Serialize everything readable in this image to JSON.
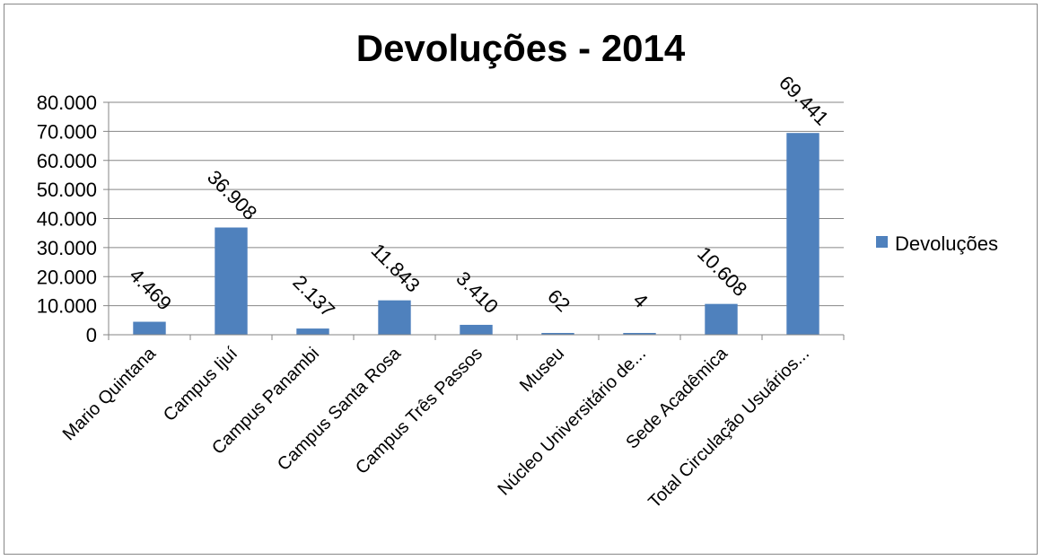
{
  "chart_data": {
    "type": "bar",
    "title": "Devoluções - 2014",
    "categories": [
      "Mario Quintana",
      "Campus Ijuí",
      "Campus Panambi",
      "Campus Santa Rosa",
      "Campus Três Passos",
      "Museu",
      "Núcleo Universitário de...",
      "Sede Acadêmica",
      "Total Circulação Usuários..."
    ],
    "series": [
      {
        "name": "Devoluções",
        "values": [
          4469,
          36908,
          2137,
          11843,
          3410,
          62,
          4,
          10608,
          69441
        ],
        "labels": [
          "4.469",
          "36.908",
          "2.137",
          "11.843",
          "3.410",
          "62",
          "4",
          "10.608",
          "69.441"
        ],
        "color": "#4F81BD"
      }
    ],
    "yticks": [
      "0",
      "10.000",
      "20.000",
      "30.000",
      "40.000",
      "50.000",
      "60.000",
      "70.000",
      "80.000"
    ],
    "ylim": [
      0,
      80000
    ],
    "grid": true,
    "legend": "right"
  }
}
